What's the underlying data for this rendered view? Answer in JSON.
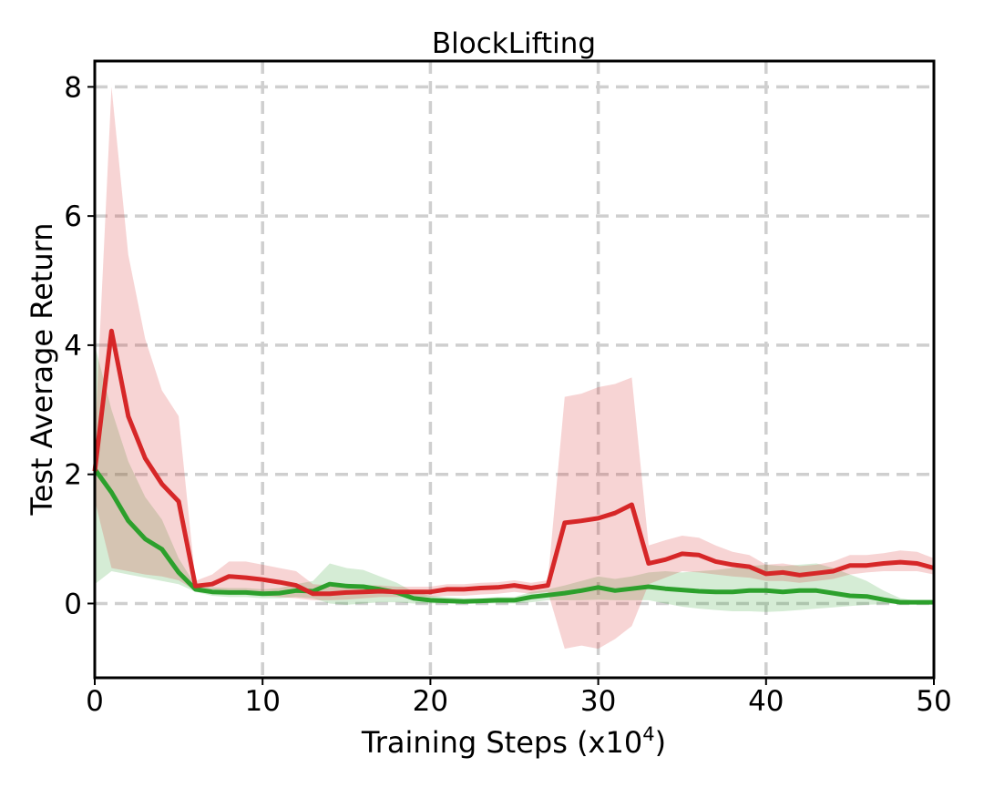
{
  "chart_data": {
    "type": "line",
    "title": "BlockLifting",
    "xlabel_main": "Training Steps (x10",
    "xlabel_sup": "4",
    "xlabel_end": ")",
    "ylabel": "Test Average Return",
    "xlim": [
      0,
      50
    ],
    "ylim": [
      -1.15,
      8.4
    ],
    "xticks": [
      0,
      10,
      20,
      30,
      40,
      50
    ],
    "yticks": [
      0,
      2,
      4,
      6,
      8
    ],
    "grid": true,
    "legend": "none",
    "series": [
      {
        "color": "#d62728",
        "x": [
          0,
          1,
          2,
          3,
          4,
          5,
          6,
          7,
          8,
          9,
          10,
          11,
          12,
          13,
          14,
          15,
          16,
          17,
          18,
          19,
          20,
          21,
          22,
          23,
          24,
          25,
          26,
          27,
          28,
          29,
          30,
          31,
          32,
          33,
          34,
          35,
          36,
          37,
          38,
          39,
          40,
          41,
          42,
          43,
          44,
          45,
          46,
          47,
          48,
          49,
          50
        ],
        "y": [
          2.05,
          4.22,
          2.9,
          2.25,
          1.85,
          1.58,
          0.27,
          0.3,
          0.42,
          0.4,
          0.37,
          0.33,
          0.28,
          0.15,
          0.15,
          0.17,
          0.18,
          0.19,
          0.18,
          0.18,
          0.18,
          0.22,
          0.22,
          0.24,
          0.25,
          0.28,
          0.24,
          0.28,
          1.25,
          1.28,
          1.32,
          1.4,
          1.53,
          0.62,
          0.68,
          0.77,
          0.75,
          0.65,
          0.6,
          0.57,
          0.46,
          0.48,
          0.44,
          0.47,
          0.5,
          0.59,
          0.59,
          0.62,
          0.64,
          0.62,
          0.55
        ],
        "lower": [
          1.6,
          0.55,
          0.5,
          0.45,
          0.42,
          0.36,
          0.2,
          0.22,
          0.2,
          0.15,
          0.12,
          0.1,
          0.08,
          0.05,
          0.05,
          0.06,
          0.08,
          0.1,
          0.1,
          0.1,
          0.1,
          0.12,
          0.12,
          0.14,
          0.15,
          0.18,
          0.15,
          0.18,
          -0.7,
          -0.65,
          -0.7,
          -0.55,
          -0.35,
          0.3,
          0.4,
          0.5,
          0.48,
          0.45,
          0.42,
          0.4,
          0.35,
          0.35,
          0.32,
          0.35,
          0.38,
          0.45,
          0.48,
          0.5,
          0.5,
          0.5,
          0.45
        ],
        "upper": [
          2.5,
          8.0,
          5.4,
          4.1,
          3.3,
          2.9,
          0.35,
          0.45,
          0.65,
          0.65,
          0.6,
          0.55,
          0.5,
          0.3,
          0.28,
          0.28,
          0.28,
          0.28,
          0.26,
          0.26,
          0.26,
          0.3,
          0.3,
          0.32,
          0.33,
          0.36,
          0.32,
          0.36,
          3.2,
          3.25,
          3.35,
          3.4,
          3.5,
          0.9,
          0.98,
          1.05,
          1.02,
          0.9,
          0.8,
          0.75,
          0.6,
          0.62,
          0.58,
          0.6,
          0.65,
          0.75,
          0.75,
          0.78,
          0.82,
          0.8,
          0.7
        ]
      },
      {
        "color": "#2ca02c",
        "x": [
          0,
          1,
          2,
          3,
          4,
          5,
          6,
          7,
          8,
          9,
          10,
          11,
          12,
          13,
          14,
          15,
          16,
          17,
          18,
          19,
          20,
          21,
          22,
          23,
          24,
          25,
          26,
          27,
          28,
          29,
          30,
          31,
          32,
          33,
          34,
          35,
          36,
          37,
          38,
          39,
          40,
          41,
          42,
          43,
          44,
          45,
          46,
          47,
          48,
          49,
          50
        ],
        "y": [
          2.08,
          1.72,
          1.28,
          1.0,
          0.84,
          0.48,
          0.22,
          0.18,
          0.17,
          0.17,
          0.15,
          0.16,
          0.2,
          0.19,
          0.3,
          0.27,
          0.26,
          0.22,
          0.17,
          0.08,
          0.05,
          0.04,
          0.03,
          0.04,
          0.05,
          0.05,
          0.1,
          0.13,
          0.16,
          0.2,
          0.25,
          0.2,
          0.23,
          0.26,
          0.23,
          0.21,
          0.19,
          0.18,
          0.18,
          0.2,
          0.2,
          0.18,
          0.2,
          0.2,
          0.16,
          0.12,
          0.11,
          0.06,
          0.02,
          0.02,
          0.02
        ],
        "lower": [
          0.3,
          0.5,
          0.45,
          0.4,
          0.35,
          0.3,
          0.18,
          0.12,
          0.1,
          0.1,
          0.08,
          0.08,
          0.1,
          0.08,
          0.0,
          -0.02,
          0.0,
          0.02,
          0.02,
          0.0,
          0.0,
          0.0,
          0.0,
          0.0,
          0.0,
          0.0,
          0.02,
          0.05,
          0.05,
          0.05,
          0.06,
          0.05,
          0.05,
          0.05,
          0.0,
          -0.05,
          -0.08,
          -0.1,
          -0.12,
          -0.12,
          -0.13,
          -0.12,
          -0.1,
          -0.08,
          -0.06,
          -0.04,
          -0.02,
          -0.01,
          0.0,
          0.0,
          0.0
        ],
        "upper": [
          4.0,
          3.0,
          2.2,
          1.65,
          1.3,
          0.7,
          0.28,
          0.25,
          0.24,
          0.24,
          0.22,
          0.24,
          0.3,
          0.35,
          0.62,
          0.55,
          0.52,
          0.42,
          0.32,
          0.18,
          0.12,
          0.1,
          0.08,
          0.08,
          0.1,
          0.1,
          0.18,
          0.22,
          0.28,
          0.35,
          0.42,
          0.38,
          0.42,
          0.48,
          0.5,
          0.48,
          0.5,
          0.52,
          0.55,
          0.58,
          0.6,
          0.58,
          0.6,
          0.62,
          0.55,
          0.45,
          0.35,
          0.2,
          0.08,
          0.04,
          0.03
        ]
      }
    ]
  }
}
